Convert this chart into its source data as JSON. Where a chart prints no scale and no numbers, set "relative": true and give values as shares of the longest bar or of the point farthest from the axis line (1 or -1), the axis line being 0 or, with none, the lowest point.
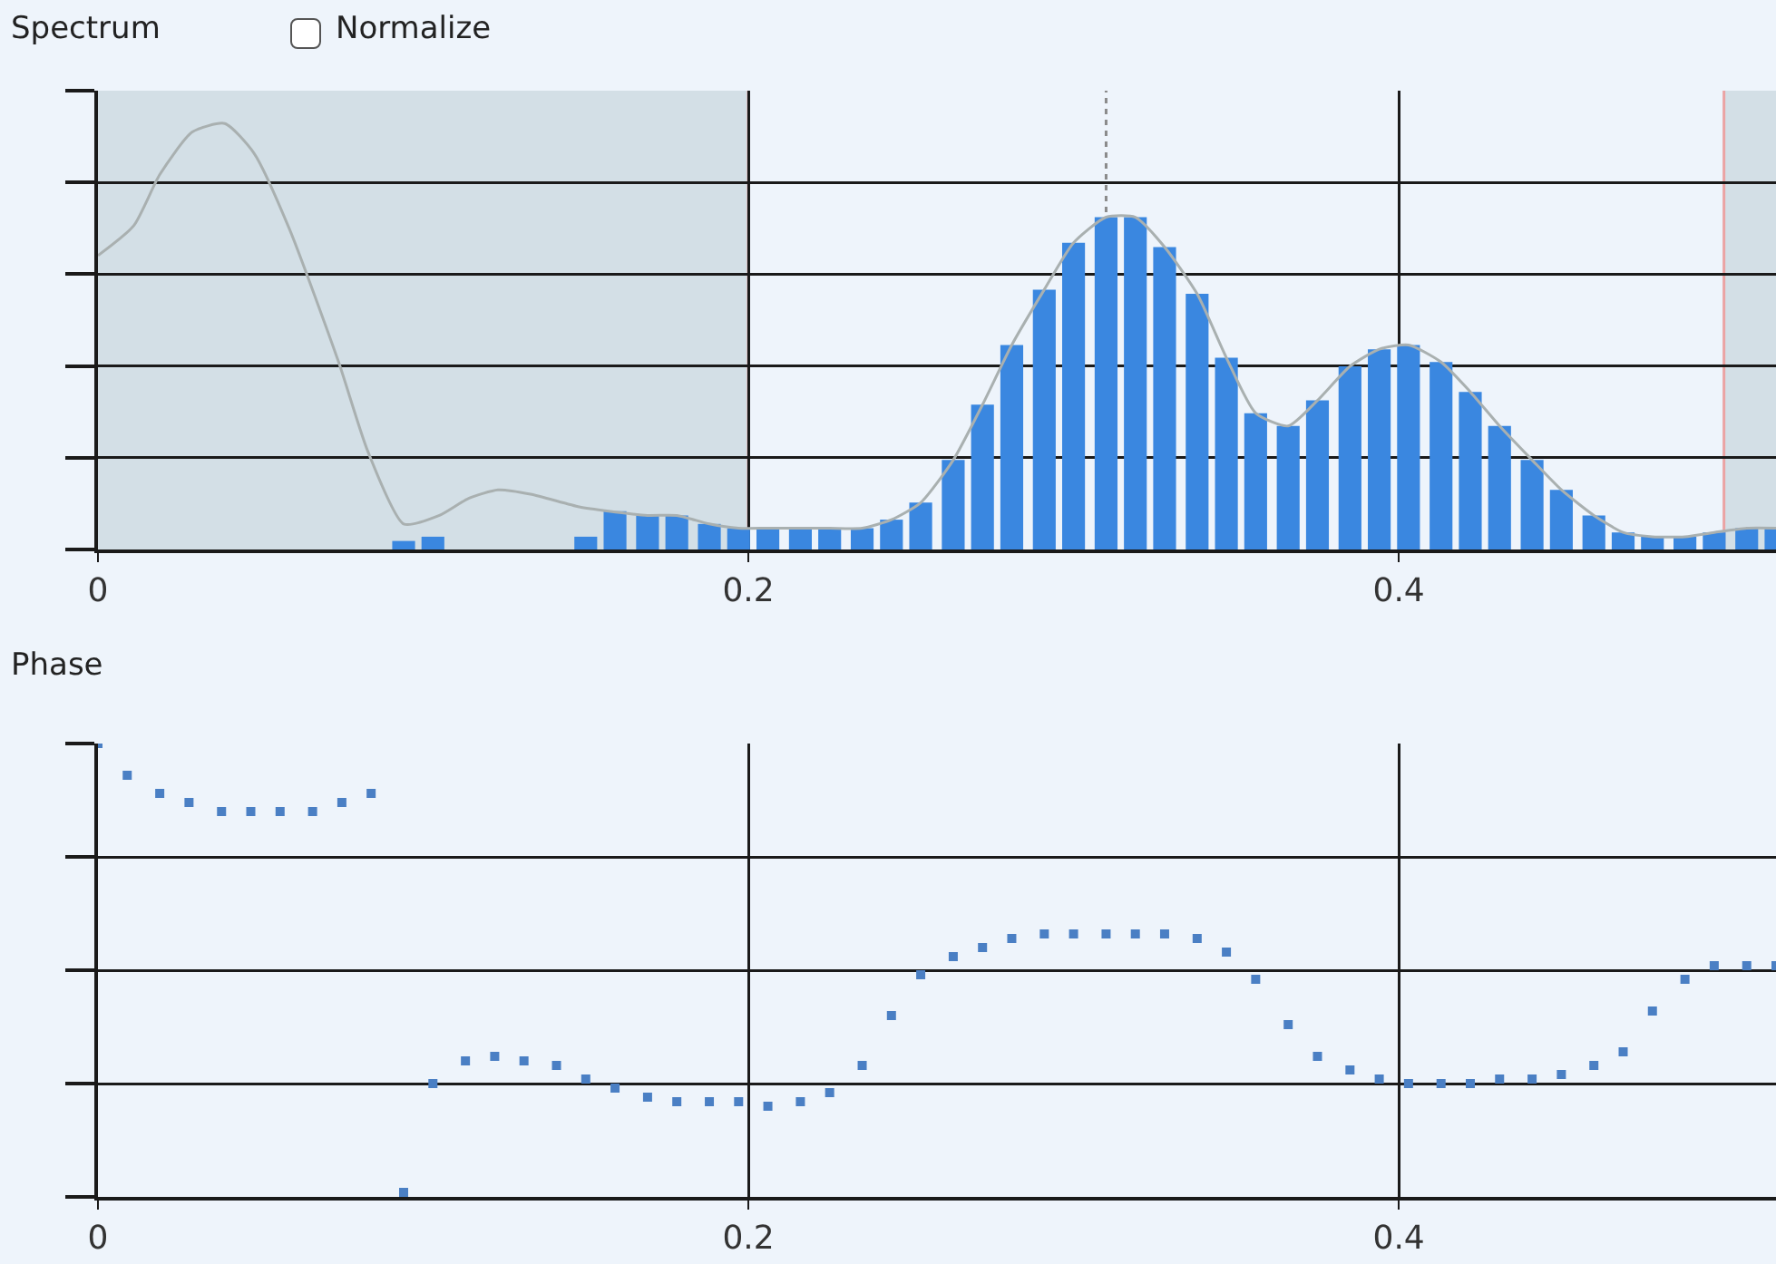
{
  "chart_data": [
    {
      "type": "bar",
      "title": "Spectrum",
      "annotations": [
        "Normalize"
      ],
      "relative": true,
      "xlim": [
        0,
        0.516
      ],
      "xticks": [
        0,
        0.2,
        0.4
      ],
      "grid": true,
      "tick_labels": "x",
      "bands": [
        {
          "axis": "x",
          "from": 0,
          "to": 0.2,
          "color": "#d3dfe6"
        },
        {
          "axis": "x",
          "from": 0.5,
          "to": 0.516,
          "color": "#d3dfe6"
        }
      ],
      "ref_lines": [
        {
          "axis": "x",
          "value": 0.2,
          "color": "#eba3a3",
          "line_style": "solid"
        },
        {
          "axis": "x",
          "value": 0.5,
          "color": "#eba3a3",
          "line_style": "solid"
        },
        {
          "axis": "x",
          "value": 0.31,
          "color": "#8a8a8a",
          "line_style": "dotted"
        }
      ],
      "series": [
        {
          "color": "#3a87e0",
          "x": [
            0.094,
            0.103,
            0.113,
            0.122,
            0.131,
            0.141,
            0.15,
            0.159,
            0.169,
            0.178,
            0.188,
            0.197,
            0.206,
            0.216,
            0.225,
            0.235,
            0.244,
            0.253,
            0.263,
            0.272,
            0.281,
            0.291,
            0.3,
            0.31,
            0.319,
            0.328,
            0.338,
            0.347,
            0.356,
            0.366,
            0.375,
            0.385,
            0.394,
            0.403,
            0.413,
            0.422,
            0.431,
            0.441,
            0.45,
            0.46,
            0.469,
            0.478,
            0.488,
            0.497,
            0.507,
            0.516
          ],
          "values": [
            0.02,
            0.03,
            null,
            null,
            null,
            null,
            0.03,
            0.09,
            0.08,
            0.08,
            0.06,
            0.05,
            0.05,
            0.05,
            0.05,
            0.05,
            0.07,
            0.11,
            0.21,
            0.34,
            0.48,
            0.61,
            0.72,
            0.78,
            0.78,
            0.71,
            0.6,
            0.45,
            0.32,
            0.29,
            0.35,
            0.43,
            0.47,
            0.48,
            0.44,
            0.37,
            0.29,
            0.21,
            0.14,
            0.08,
            0.04,
            0.03,
            0.03,
            0.04,
            0.05,
            0.05
          ]
        },
        {
          "type": "line",
          "color": "#a9b0b0",
          "x": [
            0,
            0.011,
            0.019,
            0.029,
            0.039,
            0.048,
            0.059,
            0.074,
            0.083,
            0.094,
            0.105,
            0.114,
            0.123,
            0.133,
            0.148,
            0.157,
            0.169,
            0.178,
            0.188,
            0.197,
            0.206,
            0.216,
            0.225,
            0.235,
            0.244,
            0.253,
            0.263,
            0.272,
            0.281,
            0.291,
            0.3,
            0.31,
            0.319,
            0.328,
            0.338,
            0.347,
            0.356,
            0.366,
            0.375,
            0.385,
            0.394,
            0.403,
            0.413,
            0.422,
            0.431,
            0.441,
            0.45,
            0.46,
            0.469,
            0.478,
            0.488,
            0.497,
            0.507,
            0.516
          ],
          "values": [
            0.69,
            0.76,
            0.88,
            0.98,
            1.0,
            0.93,
            0.75,
            0.44,
            0.23,
            0.06,
            0.08,
            0.12,
            0.14,
            0.13,
            0.1,
            0.09,
            0.08,
            0.08,
            0.06,
            0.05,
            0.05,
            0.05,
            0.05,
            0.05,
            0.07,
            0.11,
            0.21,
            0.34,
            0.48,
            0.61,
            0.72,
            0.78,
            0.78,
            0.71,
            0.6,
            0.45,
            0.32,
            0.29,
            0.35,
            0.43,
            0.47,
            0.48,
            0.44,
            0.37,
            0.29,
            0.21,
            0.14,
            0.08,
            0.04,
            0.03,
            0.03,
            0.04,
            0.05,
            0.05
          ]
        }
      ]
    },
    {
      "type": "scatter",
      "title": "Phase",
      "relative": true,
      "xlim": [
        0,
        0.516
      ],
      "xticks": [
        0,
        0.2,
        0.4
      ],
      "grid": true,
      "tick_labels": "x",
      "marker": "square",
      "series": [
        {
          "color": "#4a7fc4",
          "x": [
            0,
            0.009,
            0.019,
            0.028,
            0.038,
            0.047,
            0.056,
            0.066,
            0.075,
            0.084,
            0.094,
            0.103,
            0.113,
            0.122,
            0.131,
            0.141,
            0.15,
            0.159,
            0.169,
            0.178,
            0.188,
            0.197,
            0.206,
            0.216,
            0.225,
            0.235,
            0.244,
            0.253,
            0.263,
            0.272,
            0.281,
            0.291,
            0.3,
            0.31,
            0.319,
            0.328,
            0.338,
            0.347,
            0.356,
            0.366,
            0.375,
            0.385,
            0.394,
            0.403,
            0.413,
            0.422,
            0.431,
            0.441,
            0.45,
            0.46,
            0.469,
            0.478,
            0.488,
            0.497,
            0.507,
            0.516
          ],
          "values": [
            1.0,
            0.93,
            0.89,
            0.87,
            0.85,
            0.85,
            0.85,
            0.85,
            0.87,
            0.89,
            0.01,
            0.25,
            0.3,
            0.31,
            0.3,
            0.29,
            0.26,
            0.24,
            0.22,
            0.21,
            0.21,
            0.21,
            0.2,
            0.21,
            0.23,
            0.29,
            0.4,
            0.49,
            0.53,
            0.55,
            0.57,
            0.58,
            0.58,
            0.58,
            0.58,
            0.58,
            0.57,
            0.54,
            0.48,
            0.38,
            0.31,
            0.28,
            0.26,
            0.25,
            0.25,
            0.25,
            0.26,
            0.26,
            0.27,
            0.29,
            0.32,
            0.41,
            0.48,
            0.51,
            0.51,
            0.51
          ]
        }
      ]
    }
  ]
}
